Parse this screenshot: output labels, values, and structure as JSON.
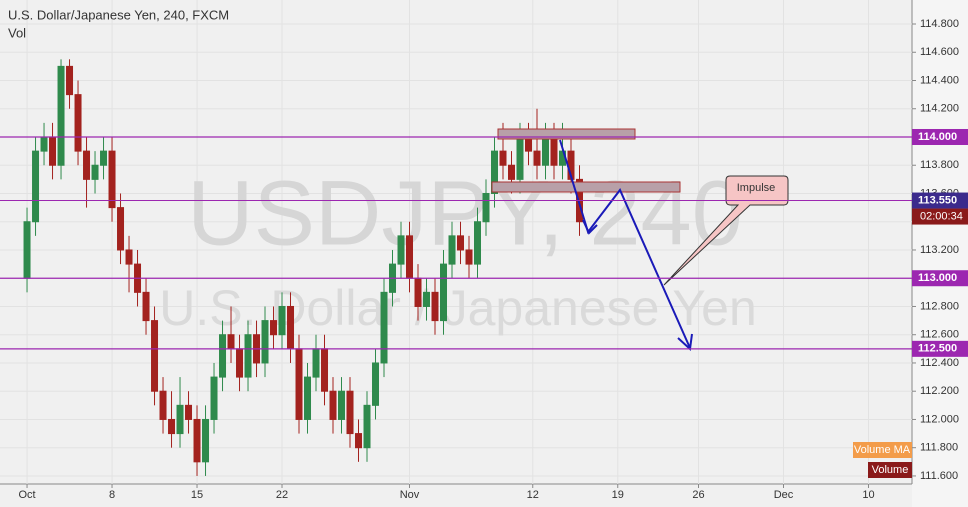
{
  "chart_data": {
    "type": "candlestick",
    "title": "U.S. Dollar/Japanese Yen, 240, FXCM",
    "subtitle": "Vol",
    "watermark": "USDJPY, 240",
    "watermark_sub": "U.S. Dollar / Japanese Yen",
    "up_color": "#2f8a4c",
    "down_color": "#a3221e",
    "grid": true,
    "x": [
      0,
      1,
      2,
      3,
      4,
      5,
      6,
      7,
      8,
      9,
      10,
      11,
      12,
      13,
      14,
      15,
      16,
      17,
      18,
      19,
      20,
      21,
      22,
      23,
      24,
      25,
      26,
      27,
      28,
      29,
      30,
      31,
      32,
      33,
      34,
      35,
      36,
      37,
      38,
      39,
      40,
      41,
      42,
      43,
      44,
      45,
      46,
      47,
      48,
      49,
      50,
      51,
      52,
      53,
      54,
      55,
      56,
      57,
      58,
      59,
      60,
      61,
      62,
      63,
      64,
      65
    ],
    "open": [
      113.0,
      113.4,
      113.9,
      114.0,
      113.8,
      114.5,
      114.3,
      113.9,
      113.7,
      113.8,
      113.9,
      113.5,
      113.2,
      113.1,
      112.9,
      112.7,
      112.2,
      112.0,
      111.9,
      112.1,
      112.0,
      111.7,
      112.0,
      112.3,
      112.6,
      112.5,
      112.3,
      112.6,
      112.4,
      112.7,
      112.6,
      112.8,
      112.5,
      112.0,
      112.3,
      112.5,
      112.2,
      112.0,
      112.2,
      111.9,
      111.8,
      112.1,
      112.4,
      112.9,
      113.1,
      113.3,
      113.0,
      112.8,
      112.9,
      112.7,
      113.1,
      113.3,
      113.2,
      113.1,
      113.4,
      113.6,
      113.9,
      113.8,
      113.7,
      114.0,
      113.9,
      113.8,
      114.0,
      113.8,
      113.9,
      113.7
    ],
    "high": [
      113.5,
      114.0,
      114.1,
      114.1,
      114.55,
      114.55,
      114.4,
      114.0,
      113.9,
      114.0,
      114.0,
      113.6,
      113.3,
      113.2,
      113.0,
      112.8,
      112.3,
      112.2,
      112.3,
      112.2,
      112.1,
      112.1,
      112.4,
      112.7,
      112.8,
      112.6,
      112.7,
      112.7,
      112.8,
      112.8,
      112.9,
      112.9,
      112.6,
      112.4,
      112.6,
      112.6,
      112.3,
      112.3,
      112.3,
      112.0,
      112.2,
      112.5,
      113.0,
      113.2,
      113.4,
      113.4,
      113.1,
      113.0,
      113.0,
      113.2,
      113.4,
      113.4,
      113.3,
      113.5,
      113.7,
      114.0,
      114.1,
      113.9,
      114.1,
      114.1,
      114.2,
      114.1,
      114.1,
      114.1,
      114.0,
      113.8
    ],
    "low": [
      112.9,
      113.3,
      113.8,
      113.7,
      113.7,
      114.2,
      113.8,
      113.5,
      113.6,
      113.7,
      113.4,
      113.1,
      112.9,
      112.8,
      112.6,
      112.1,
      111.9,
      111.8,
      111.8,
      111.9,
      111.6,
      111.6,
      111.9,
      112.2,
      112.4,
      112.2,
      112.2,
      112.3,
      112.3,
      112.5,
      112.5,
      112.4,
      111.9,
      111.9,
      112.2,
      112.1,
      111.9,
      111.9,
      111.8,
      111.7,
      111.7,
      112.0,
      112.3,
      112.8,
      113.0,
      112.9,
      112.7,
      112.7,
      112.6,
      112.6,
      113.0,
      113.1,
      113.0,
      113.0,
      113.3,
      113.5,
      113.7,
      113.6,
      113.6,
      113.8,
      113.7,
      113.7,
      113.7,
      113.7,
      113.6,
      113.3
    ],
    "close": [
      113.4,
      113.9,
      114.0,
      113.8,
      114.5,
      114.3,
      113.9,
      113.7,
      113.8,
      113.9,
      113.5,
      113.2,
      113.1,
      112.9,
      112.7,
      112.2,
      112.0,
      111.9,
      112.1,
      112.0,
      111.7,
      112.0,
      112.3,
      112.6,
      112.5,
      112.3,
      112.6,
      112.4,
      112.7,
      112.6,
      112.8,
      112.5,
      112.0,
      112.3,
      112.5,
      112.2,
      112.0,
      112.2,
      111.9,
      111.8,
      112.1,
      112.4,
      112.9,
      113.1,
      113.3,
      113.0,
      112.8,
      112.9,
      112.7,
      113.1,
      113.3,
      113.2,
      113.1,
      113.4,
      113.6,
      113.9,
      113.8,
      113.7,
      114.0,
      113.9,
      113.8,
      114.0,
      113.8,
      113.9,
      113.7,
      113.4
    ],
    "xlim": [
      -3.18,
      104.12
    ],
    "xticks": [
      {
        "value": 0,
        "label": "Oct"
      },
      {
        "value": 10,
        "label": "8"
      },
      {
        "value": 20,
        "label": "15"
      },
      {
        "value": 30,
        "label": "22"
      },
      {
        "value": 45,
        "label": "Nov"
      },
      {
        "value": 59.5,
        "label": "12"
      },
      {
        "value": 69.5,
        "label": "19"
      },
      {
        "value": 79,
        "label": "26"
      },
      {
        "value": 89,
        "label": "Dec"
      },
      {
        "value": 99,
        "label": "10"
      }
    ],
    "ylim": [
      111.543,
      114.97
    ],
    "yticks": [
      {
        "value": 111.6,
        "label": "111.600"
      },
      {
        "value": 111.8,
        "label": "111.800"
      },
      {
        "value": 112.0,
        "label": "112.000"
      },
      {
        "value": 112.2,
        "label": "112.200"
      },
      {
        "value": 112.4,
        "label": "112.400"
      },
      {
        "value": 112.6,
        "label": "112.600"
      },
      {
        "value": 112.8,
        "label": "112.800"
      },
      {
        "value": 113.0,
        "label": "113.000"
      },
      {
        "value": 113.2,
        "label": "113.200"
      },
      {
        "value": 113.4,
        "label": "113.400"
      },
      {
        "value": 113.6,
        "label": "113.600"
      },
      {
        "value": 113.8,
        "label": "113.800"
      },
      {
        "value": 114.0,
        "label": "114.000"
      },
      {
        "value": 114.2,
        "label": "114.200"
      },
      {
        "value": 114.4,
        "label": "114.400"
      },
      {
        "value": 114.6,
        "label": "114.600"
      },
      {
        "value": 114.8,
        "label": "114.800"
      }
    ],
    "level_color": "#9c27b0",
    "levels": [
      {
        "value": 114.0,
        "label": "114.000"
      },
      {
        "value": 113.0,
        "label": "113.000"
      },
      {
        "value": 112.5,
        "label": "112.500"
      }
    ],
    "last_price": {
      "value": 113.55,
      "label": "113.550"
    },
    "countdown": "02:00:34",
    "annotation": "Impulse",
    "legend": [
      "Volume MA",
      "Volume"
    ]
  }
}
